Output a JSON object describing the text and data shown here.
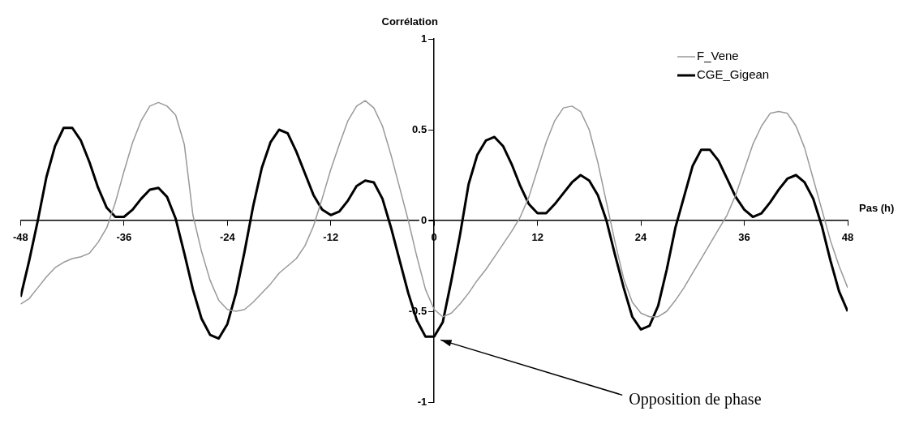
{
  "chart_data": {
    "type": "line",
    "xlabel": "Pas (h)",
    "ylabel": "Corrélation",
    "x": [
      -48,
      -47,
      -46,
      -45,
      -44,
      -43,
      -42,
      -41,
      -40,
      -39,
      -38,
      -37,
      -36,
      -35,
      -34,
      -33,
      -32,
      -31,
      -30,
      -29,
      -28,
      -27,
      -26,
      -25,
      -24,
      -23,
      -22,
      -21,
      -20,
      -19,
      -18,
      -17,
      -16,
      -15,
      -14,
      -13,
      -12,
      -11,
      -10,
      -9,
      -8,
      -7,
      -6,
      -5,
      -4,
      -3,
      -2,
      -1,
      0,
      1,
      2,
      3,
      4,
      5,
      6,
      7,
      8,
      9,
      10,
      11,
      12,
      13,
      14,
      15,
      16,
      17,
      18,
      19,
      20,
      21,
      22,
      23,
      24,
      25,
      26,
      27,
      28,
      29,
      30,
      31,
      32,
      33,
      34,
      35,
      36,
      37,
      38,
      39,
      40,
      41,
      42,
      43,
      44,
      45,
      46,
      47,
      48
    ],
    "series": [
      {
        "name": "F_Vene",
        "color": "#999999",
        "values": [
          -0.46,
          -0.43,
          -0.37,
          -0.31,
          -0.26,
          -0.23,
          -0.21,
          -0.2,
          -0.18,
          -0.12,
          -0.04,
          0.1,
          0.27,
          0.43,
          0.55,
          0.63,
          0.65,
          0.63,
          0.58,
          0.42,
          0.03,
          -0.17,
          -0.33,
          -0.44,
          -0.49,
          -0.5,
          -0.49,
          -0.45,
          -0.4,
          -0.35,
          -0.29,
          -0.25,
          -0.21,
          -0.14,
          -0.03,
          0.12,
          0.28,
          0.42,
          0.55,
          0.63,
          0.66,
          0.62,
          0.52,
          0.36,
          0.18,
          0.0,
          -0.2,
          -0.38,
          -0.49,
          -0.53,
          -0.51,
          -0.46,
          -0.4,
          -0.33,
          -0.27,
          -0.2,
          -0.13,
          -0.06,
          0.02,
          0.13,
          0.28,
          0.43,
          0.55,
          0.62,
          0.63,
          0.6,
          0.5,
          0.32,
          0.1,
          -0.12,
          -0.32,
          -0.45,
          -0.51,
          -0.53,
          -0.53,
          -0.5,
          -0.44,
          -0.37,
          -0.29,
          -0.21,
          -0.13,
          -0.05,
          0.03,
          0.14,
          0.28,
          0.42,
          0.52,
          0.59,
          0.6,
          0.59,
          0.52,
          0.4,
          0.23,
          0.06,
          -0.11,
          -0.25,
          -0.37
        ]
      },
      {
        "name": "CGE_Gigean",
        "color": "#000000",
        "values": [
          -0.42,
          -0.22,
          0.0,
          0.24,
          0.41,
          0.51,
          0.51,
          0.44,
          0.32,
          0.18,
          0.07,
          0.02,
          0.02,
          0.06,
          0.12,
          0.17,
          0.18,
          0.13,
          0.01,
          -0.18,
          -0.38,
          -0.54,
          -0.63,
          -0.65,
          -0.57,
          -0.4,
          -0.17,
          0.08,
          0.29,
          0.43,
          0.5,
          0.48,
          0.38,
          0.26,
          0.14,
          0.06,
          0.03,
          0.05,
          0.11,
          0.19,
          0.22,
          0.21,
          0.12,
          -0.04,
          -0.22,
          -0.4,
          -0.55,
          -0.64,
          -0.64,
          -0.56,
          -0.33,
          -0.08,
          0.2,
          0.36,
          0.44,
          0.46,
          0.41,
          0.31,
          0.19,
          0.09,
          0.04,
          0.04,
          0.09,
          0.15,
          0.21,
          0.25,
          0.22,
          0.14,
          0.0,
          -0.19,
          -0.37,
          -0.53,
          -0.6,
          -0.58,
          -0.47,
          -0.27,
          -0.04,
          0.13,
          0.3,
          0.39,
          0.39,
          0.33,
          0.23,
          0.13,
          0.06,
          0.02,
          0.04,
          0.1,
          0.17,
          0.23,
          0.25,
          0.21,
          0.12,
          -0.03,
          -0.22,
          -0.39,
          -0.5
        ]
      }
    ],
    "xlim": [
      -48,
      48
    ],
    "xticks": [
      -48,
      -36,
      -24,
      -12,
      0,
      12,
      24,
      36,
      48
    ],
    "ylim": [
      -1,
      1
    ],
    "yticks": [
      -1,
      -0.5,
      0,
      0.5,
      1
    ],
    "grid": false,
    "legend": "top right",
    "marker": "none",
    "line_style": "solid",
    "annotations": [
      {
        "text": "Opposition de phase",
        "x": 0,
        "y": -0.64
      }
    ]
  }
}
